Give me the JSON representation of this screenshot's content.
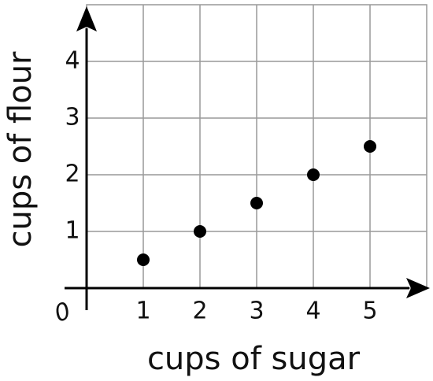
{
  "chart_data": {
    "type": "scatter",
    "x_label": "cups of sugar",
    "y_label": "cups of flour",
    "origin_label": "0",
    "x": [
      1,
      2,
      3,
      4,
      5
    ],
    "values": [
      0.5,
      1,
      1.5,
      2,
      2.5
    ],
    "color": "#000000",
    "xlim": [
      0,
      6
    ],
    "ylim": [
      0,
      5
    ],
    "xticks": [
      1,
      2,
      3,
      4,
      5
    ],
    "yticks": [
      1,
      2,
      3,
      4
    ],
    "grid": true
  }
}
